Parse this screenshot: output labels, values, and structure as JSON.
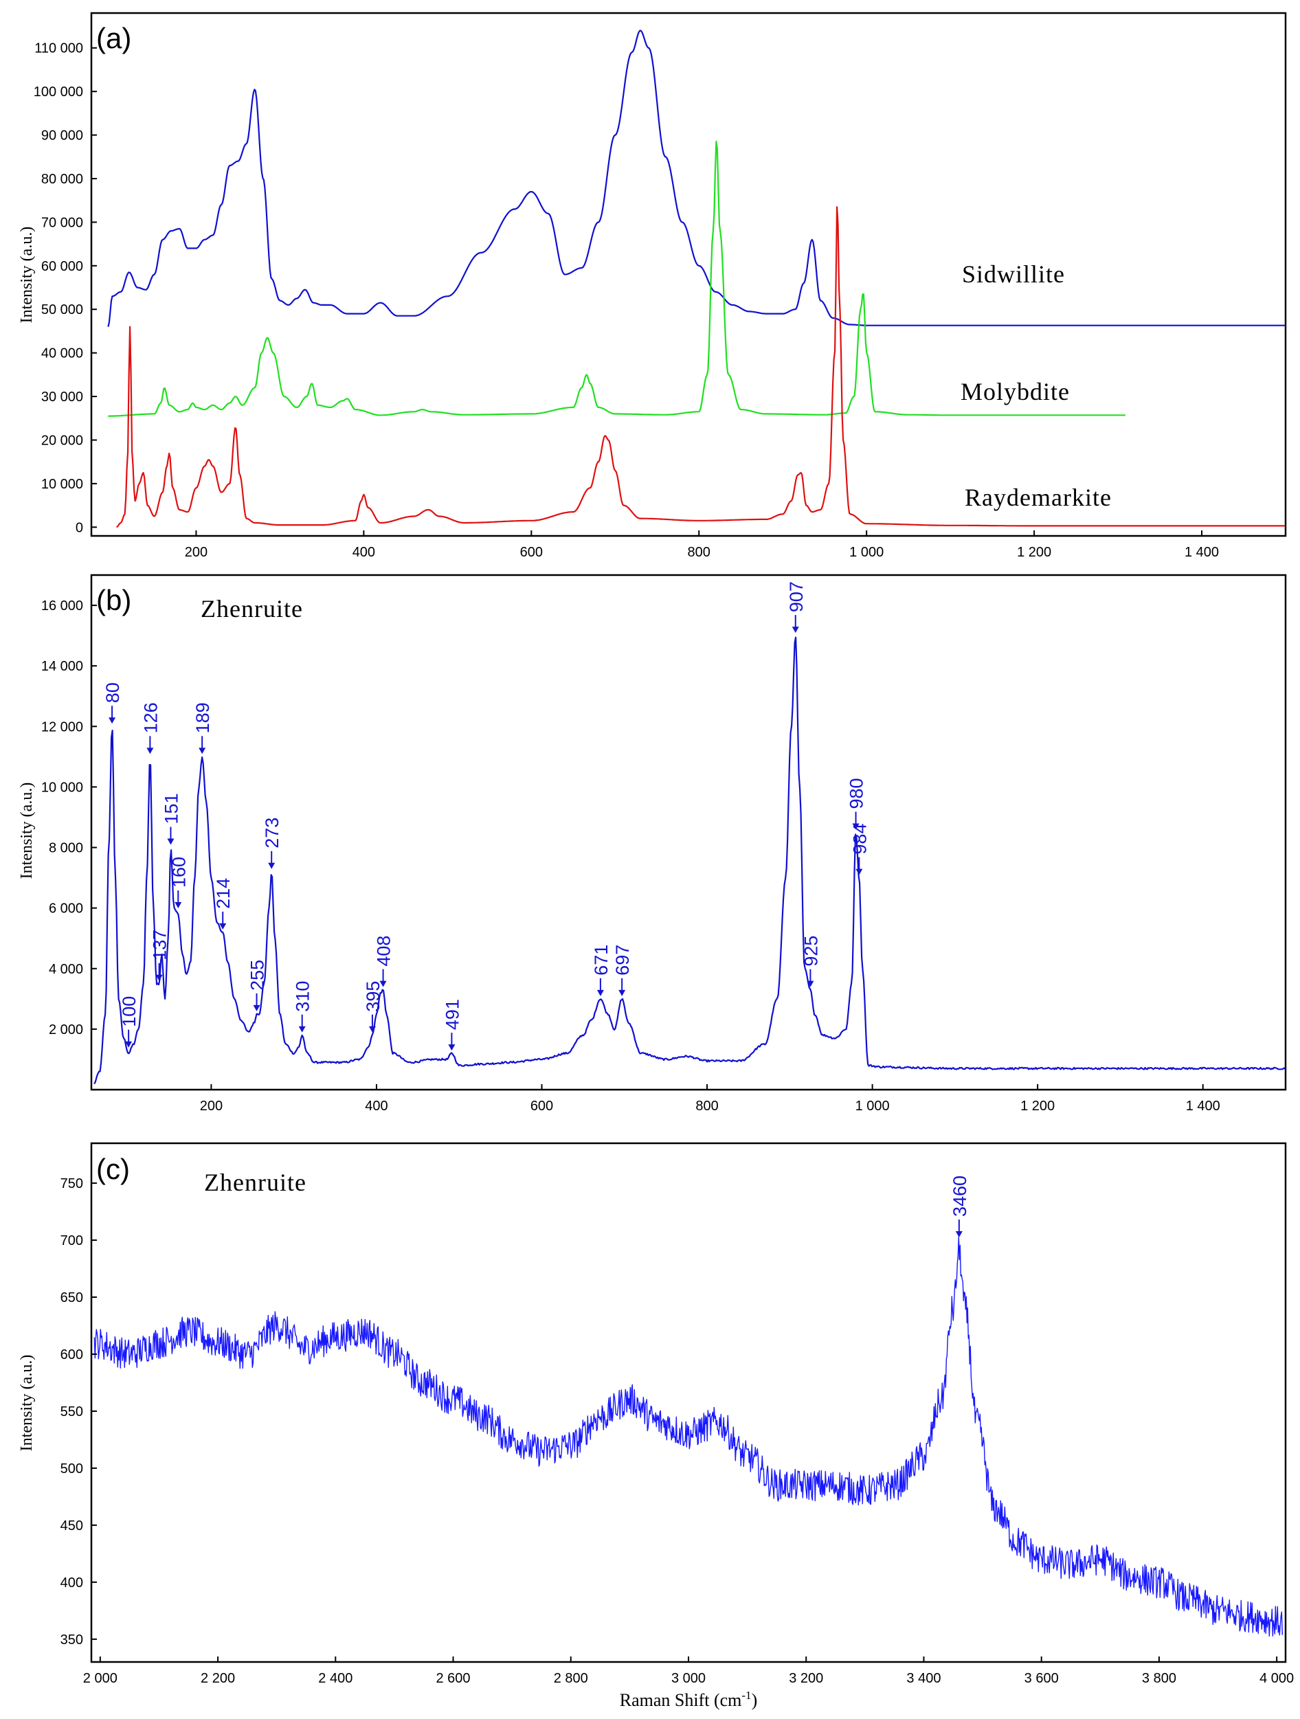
{
  "chart_data": [
    {
      "panel": "(a)",
      "type": "line",
      "ylabel": "Intensity (a.u.)",
      "xlabel": "",
      "xlim": [
        75,
        1500
      ],
      "ylim": [
        -2000,
        118000
      ],
      "xticks": [
        200,
        400,
        600,
        800,
        1000,
        1200,
        1400
      ],
      "xtick_labels": [
        "200",
        "400",
        "600",
        "800",
        "1 000",
        "1 200",
        "1 400"
      ],
      "yticks": [
        0,
        10000,
        20000,
        30000,
        40000,
        50000,
        60000,
        70000,
        80000,
        90000,
        100000,
        110000
      ],
      "ytick_labels": [
        "0",
        "10 000",
        "20 000",
        "30 000",
        "40 000",
        "50 000",
        "60 000",
        "70 000",
        "80 000",
        "90 000",
        "100 000",
        "110 000"
      ],
      "series": [
        {
          "name": "Sidwillite",
          "color": "#1010d0",
          "label_at": [
            1180,
            57000
          ],
          "x": [
            95,
            100,
            110,
            120,
            130,
            140,
            150,
            160,
            170,
            180,
            190,
            200,
            210,
            220,
            230,
            240,
            250,
            260,
            270,
            280,
            290,
            300,
            310,
            320,
            330,
            340,
            350,
            360,
            380,
            400,
            420,
            440,
            460,
            500,
            540,
            580,
            600,
            620,
            640,
            660,
            680,
            700,
            720,
            730,
            740,
            760,
            780,
            800,
            820,
            840,
            860,
            880,
            900,
            915,
            925,
            935,
            945,
            960,
            980,
            1000,
            1100,
            1200,
            1300,
            1400,
            1500
          ],
          "y": [
            46000,
            53000,
            54000,
            58500,
            55000,
            54500,
            58000,
            66000,
            68000,
            68500,
            64000,
            64000,
            66000,
            67000,
            74000,
            83000,
            84000,
            88000,
            100500,
            80000,
            57000,
            52000,
            51000,
            52500,
            54500,
            51500,
            51000,
            51000,
            49000,
            49000,
            51500,
            48500,
            48500,
            53000,
            63000,
            73000,
            77000,
            72000,
            58000,
            59500,
            70000,
            90000,
            109000,
            114000,
            110000,
            85000,
            70000,
            60000,
            54000,
            51000,
            49500,
            49000,
            49000,
            50000,
            56000,
            66000,
            52000,
            48000,
            46500,
            46300,
            46300,
            46300,
            46300,
            46300,
            46300
          ]
        },
        {
          "name": "Molybdite",
          "color": "#20e020",
          "label_at": [
            1180,
            30000
          ],
          "x": [
            95,
            150,
            158,
            162,
            168,
            180,
            190,
            196,
            200,
            210,
            220,
            230,
            240,
            247,
            255,
            270,
            278,
            285,
            292,
            305,
            320,
            332,
            338,
            345,
            360,
            375,
            380,
            390,
            420,
            460,
            470,
            480,
            520,
            600,
            650,
            660,
            666,
            670,
            680,
            700,
            760,
            800,
            810,
            817,
            821,
            825,
            835,
            850,
            880,
            950,
            975,
            985,
            993,
            996,
            1000,
            1010,
            1050,
            1100,
            1200,
            1310
          ],
          "y": [
            25500,
            26000,
            28500,
            32000,
            28000,
            26500,
            27000,
            28500,
            27500,
            27000,
            28000,
            27000,
            28500,
            30000,
            28000,
            32000,
            40000,
            43500,
            40000,
            30000,
            27500,
            30000,
            33000,
            28000,
            27500,
            29000,
            29500,
            27000,
            25700,
            26500,
            27000,
            26500,
            25800,
            26000,
            27500,
            32000,
            35000,
            33000,
            27500,
            26000,
            25800,
            26500,
            35000,
            68000,
            89000,
            68000,
            35000,
            27000,
            26000,
            25800,
            26200,
            30000,
            50000,
            54000,
            40000,
            26500,
            25800,
            25700,
            25700,
            25700
          ]
        },
        {
          "name": "Raydemarkite",
          "color": "#e01010",
          "label_at": [
            1180,
            5000
          ],
          "x": [
            105,
            110,
            115,
            118,
            121,
            124,
            127,
            132,
            137,
            142,
            150,
            160,
            165,
            168,
            172,
            180,
            190,
            200,
            210,
            215,
            220,
            230,
            240,
            247,
            252,
            260,
            270,
            300,
            350,
            390,
            397,
            400,
            405,
            420,
            460,
            477,
            490,
            520,
            600,
            650,
            670,
            680,
            688,
            692,
            700,
            710,
            730,
            800,
            880,
            900,
            910,
            918,
            922,
            928,
            935,
            945,
            955,
            962,
            965,
            968,
            972,
            980,
            1000,
            1100,
            1200,
            1300,
            1400,
            1500
          ],
          "y": [
            0,
            1000,
            3000,
            15000,
            46000,
            15000,
            6000,
            10000,
            12500,
            5000,
            2500,
            8000,
            14000,
            17000,
            9000,
            4000,
            3500,
            9000,
            14000,
            15500,
            14000,
            8000,
            10000,
            23000,
            12000,
            2000,
            1000,
            500,
            500,
            1500,
            6000,
            7500,
            4500,
            1000,
            2500,
            4000,
            2500,
            1000,
            1500,
            3500,
            9000,
            15000,
            21000,
            20000,
            13000,
            5000,
            2000,
            1500,
            1800,
            3000,
            6000,
            12000,
            12500,
            5000,
            3500,
            4000,
            10000,
            40000,
            74500,
            50000,
            20000,
            3000,
            800,
            400,
            300,
            300,
            300,
            300
          ]
        }
      ]
    },
    {
      "panel": "(b)",
      "type": "line",
      "title": "Zhenruite",
      "ylabel": "Intensity (a.u.)",
      "xlabel": "",
      "xlim": [
        55,
        1500
      ],
      "ylim": [
        0,
        17000
      ],
      "xticks": [
        200,
        400,
        600,
        800,
        1000,
        1200,
        1400
      ],
      "xtick_labels": [
        "200",
        "400",
        "600",
        "800",
        "1 000",
        "1 200",
        "1 400"
      ],
      "yticks": [
        2000,
        4000,
        6000,
        8000,
        10000,
        12000,
        14000,
        16000
      ],
      "ytick_labels": [
        "2 000",
        "4 000",
        "6 000",
        "8 000",
        "10 000",
        "12 000",
        "14 000",
        "16 000"
      ],
      "series": [
        {
          "name": "Zhenruite",
          "color": "#1010d0",
          "x": [
            58,
            65,
            72,
            76,
            80,
            84,
            88,
            94,
            100,
            106,
            112,
            118,
            122,
            126,
            130,
            134,
            137,
            140,
            144,
            148,
            151,
            155,
            160,
            165,
            170,
            175,
            180,
            185,
            189,
            194,
            200,
            207,
            214,
            220,
            228,
            236,
            245,
            252,
            255,
            258,
            264,
            270,
            273,
            277,
            283,
            290,
            300,
            306,
            310,
            316,
            325,
            340,
            360,
            380,
            390,
            395,
            400,
            405,
            408,
            412,
            420,
            440,
            470,
            485,
            491,
            500,
            530,
            560,
            600,
            630,
            650,
            660,
            671,
            680,
            688,
            697,
            705,
            720,
            750,
            775,
            800,
            840,
            870,
            885,
            895,
            902,
            907,
            912,
            918,
            925,
            930,
            940,
            955,
            968,
            975,
            980,
            984,
            988,
            995,
            1010,
            1100,
            1200,
            1300,
            1400,
            1500
          ],
          "y": [
            200,
            600,
            2500,
            8000,
            12000,
            7000,
            3000,
            1700,
            1200,
            1500,
            2000,
            3500,
            7000,
            11000,
            6000,
            3500,
            3500,
            4500,
            3000,
            5000,
            8000,
            6000,
            5800,
            4500,
            3800,
            4200,
            7000,
            10000,
            11000,
            9500,
            7000,
            5500,
            5200,
            4200,
            3000,
            2300,
            1900,
            2200,
            2500,
            2500,
            3500,
            6000,
            7200,
            5000,
            2500,
            1500,
            1200,
            1400,
            1800,
            1200,
            900,
            900,
            900,
            1000,
            1400,
            1800,
            2500,
            3200,
            3300,
            2500,
            1200,
            900,
            1000,
            1000,
            1200,
            800,
            850,
            900,
            1000,
            1200,
            1800,
            2300,
            3000,
            2500,
            2000,
            3000,
            2200,
            1200,
            1000,
            1100,
            950,
            950,
            1500,
            3000,
            7000,
            12000,
            15000,
            10000,
            4000,
            3300,
            2500,
            1800,
            1700,
            2000,
            3500,
            8500,
            7000,
            4000,
            800,
            750,
            700,
            700,
            700,
            700,
            700
          ]
        }
      ],
      "peaks": [
        {
          "x": 80,
          "label": "80",
          "y": 12000
        },
        {
          "x": 100,
          "label": "100",
          "y": 1300
        },
        {
          "x": 126,
          "label": "126",
          "y": 11000
        },
        {
          "x": 137,
          "label": "137",
          "y": 3500
        },
        {
          "x": 151,
          "label": "151",
          "y": 8000
        },
        {
          "x": 160,
          "label": "160",
          "y": 5900
        },
        {
          "x": 189,
          "label": "189",
          "y": 11000
        },
        {
          "x": 214,
          "label": "214",
          "y": 5200
        },
        {
          "x": 255,
          "label": "255",
          "y": 2500
        },
        {
          "x": 273,
          "label": "273",
          "y": 7200
        },
        {
          "x": 310,
          "label": "310",
          "y": 1800
        },
        {
          "x": 395,
          "label": "395",
          "y": 1800
        },
        {
          "x": 408,
          "label": "408",
          "y": 3300
        },
        {
          "x": 491,
          "label": "491",
          "y": 1200
        },
        {
          "x": 671,
          "label": "671",
          "y": 3000
        },
        {
          "x": 697,
          "label": "697",
          "y": 3000
        },
        {
          "x": 907,
          "label": "907",
          "y": 15000
        },
        {
          "x": 925,
          "label": "925",
          "y": 3300
        },
        {
          "x": 980,
          "label": "980",
          "y": 8500
        },
        {
          "x": 984,
          "label": "984",
          "y": 7000
        }
      ]
    },
    {
      "panel": "(c)",
      "type": "line",
      "title": "Zhenruite",
      "ylabel": "Intensity (a.u.)",
      "xlabel": "Raman Shift (cm-1)",
      "xlim": [
        1985,
        4015
      ],
      "ylim": [
        330,
        785
      ],
      "xticks": [
        2000,
        2200,
        2400,
        2600,
        2800,
        3000,
        3200,
        3400,
        3600,
        3800,
        4000
      ],
      "xtick_labels": [
        "2 000",
        "2 200",
        "2 400",
        "2 600",
        "2 800",
        "3 000",
        "3 200",
        "3 400",
        "3 600",
        "3 800",
        "4 000"
      ],
      "yticks": [
        350,
        400,
        450,
        500,
        550,
        600,
        650,
        700,
        750
      ],
      "ytick_labels": [
        "350",
        "400",
        "450",
        "500",
        "550",
        "600",
        "650",
        "700",
        "750"
      ],
      "noise_amplitude": 14,
      "series": [
        {
          "name": "Zhenruite",
          "color": "#1818ff",
          "x": [
            1990,
            2050,
            2100,
            2150,
            2200,
            2250,
            2300,
            2350,
            2400,
            2450,
            2500,
            2550,
            2600,
            2650,
            2700,
            2750,
            2800,
            2850,
            2900,
            2950,
            3000,
            3050,
            3100,
            3150,
            3200,
            3250,
            3300,
            3350,
            3400,
            3430,
            3450,
            3460,
            3470,
            3490,
            3520,
            3560,
            3600,
            3650,
            3700,
            3750,
            3800,
            3850,
            3900,
            3950,
            4010
          ],
          "y": [
            610,
            600,
            610,
            620,
            610,
            600,
            625,
            605,
            615,
            620,
            600,
            575,
            560,
            545,
            525,
            515,
            520,
            545,
            560,
            540,
            530,
            540,
            510,
            485,
            485,
            485,
            480,
            485,
            510,
            560,
            640,
            690,
            640,
            540,
            465,
            435,
            420,
            415,
            420,
            405,
            400,
            385,
            375,
            370,
            365
          ]
        }
      ],
      "peaks": [
        {
          "x": 3460,
          "label": "3460",
          "y": 700
        }
      ]
    }
  ],
  "labels": {
    "panel_a": "(a)",
    "panel_b": "(b)",
    "panel_c": "(c)",
    "sidwillite": "Sidwillite",
    "molybdite": "Molybdite",
    "raydemarkite": "Raydemarkite",
    "zhenruite_b": "Zhenruite",
    "zhenruite_c": "Zhenruite",
    "ylabel_a": "Intensity (a.u.)",
    "ylabel_b": "Intensity (a.u.)",
    "ylabel_c": "Intensity (a.u.)",
    "xlabel_main": "Raman Shift (cm",
    "xlabel_sup": "-1",
    "xlabel_end": ")"
  }
}
